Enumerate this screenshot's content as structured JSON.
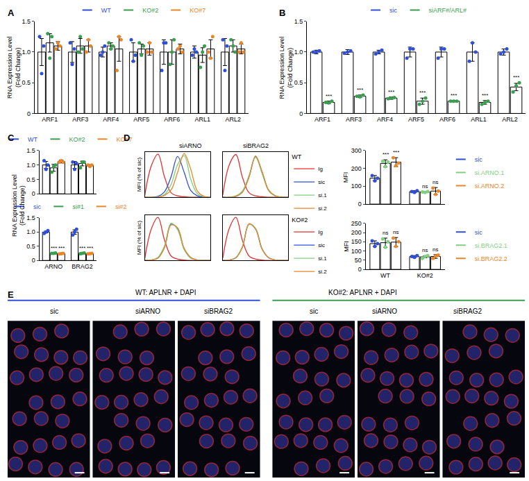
{
  "chart_data": [
    {
      "type": "bar",
      "panel": "A",
      "y_title": "RNA Expression Level\n(Fold Change)",
      "legend": "top",
      "grid": false,
      "categories": [
        "ARF1",
        "ARF3",
        "ARF4",
        "ARF5",
        "ARF6",
        "ARL1",
        "ARL2"
      ],
      "ylim": [
        0,
        1.5
      ],
      "yticks": [
        0,
        0.5,
        {
          "value": 1,
          "label": "1.0"
        },
        1.5
      ],
      "series": [
        {
          "name": "WT",
          "color": "#2f4fd8",
          "values": [
            1.0,
            1.0,
            1.0,
            1.0,
            1.0,
            1.0,
            1.0
          ],
          "errors": [
            0.22,
            0.17,
            0.08,
            0.15,
            0.2,
            0.1,
            0.22
          ],
          "points": [
            [
              1.25,
              0.65,
              1.1
            ],
            [
              1.15,
              0.8,
              1.05
            ],
            [
              0.95,
              1.0,
              1.1
            ],
            [
              1.2,
              0.85,
              0.95
            ],
            [
              0.7,
              1.15,
              1.15
            ],
            [
              0.95,
              1.05,
              1.0
            ],
            [
              1.2,
              0.7,
              1.1
            ]
          ]
        },
        {
          "name": "KO#2",
          "color": "#3a9e4f",
          "values": [
            1.15,
            1.1,
            1.1,
            1.05,
            1.0,
            0.95,
            1.1
          ],
          "errors": [
            0.15,
            0.12,
            0.05,
            0.08,
            0.2,
            0.12,
            0.1
          ],
          "points": [
            [
              1.3,
              0.9,
              1.25
            ],
            [
              1.0,
              1.25,
              1.05
            ],
            [
              1.15,
              1.05,
              1.1
            ],
            [
              1.15,
              0.95,
              1.1
            ],
            [
              0.8,
              1.0,
              1.2
            ],
            [
              0.75,
              1.0,
              1.1
            ],
            [
              1.2,
              1.1,
              1.0
            ]
          ]
        },
        {
          "name": "KO#7",
          "color": "#e8862a",
          "values": [
            1.1,
            1.1,
            1.05,
            1.05,
            1.05,
            1.05,
            1.05
          ],
          "errors": [
            0.07,
            0.1,
            0.2,
            0.1,
            0.08,
            0.15,
            0.08
          ],
          "points": [
            [
              1.05,
              1.15,
              1.1
            ],
            [
              1.0,
              1.2,
              1.1
            ],
            [
              0.7,
              1.25,
              1.2
            ],
            [
              1.0,
              1.15,
              1.0
            ],
            [
              1.05,
              1.1,
              1.0
            ],
            [
              1.0,
              0.9,
              1.25
            ],
            [
              1.0,
              1.15,
              1.0
            ]
          ]
        }
      ]
    },
    {
      "type": "bar",
      "panel": "B",
      "y_title": "RNA Expression Level\n(Fold Change)",
      "legend": "top",
      "grid": false,
      "categories": [
        "ARF1",
        "ARF3",
        "ARF4",
        "ARF5",
        "ARF6",
        "ARL1",
        "ARL2"
      ],
      "ylim": [
        0,
        1.5
      ],
      "yticks": [
        0,
        0.5,
        {
          "value": 1,
          "label": "1.0"
        },
        1.5
      ],
      "series": [
        {
          "name": "sic",
          "color": "#2f4fd8",
          "values": [
            1.0,
            1.0,
            1.0,
            1.0,
            1.0,
            1.0,
            1.0
          ],
          "errors": [
            0.03,
            0.04,
            0.03,
            0.08,
            0.08,
            0.15,
            0.05
          ],
          "points": [
            [
              1.0,
              1.0,
              1.02
            ],
            [
              0.98,
              1.0,
              1.02
            ],
            [
              0.97,
              1.0,
              1.03
            ],
            [
              0.9,
              1.05,
              1.05
            ],
            [
              0.9,
              1.05,
              1.05
            ],
            [
              0.85,
              1.15,
              1.0
            ],
            [
              0.97,
              1.0,
              1.05
            ]
          ]
        },
        {
          "name": "siARF#/ARL#",
          "color": "#3a9e4f",
          "values": [
            0.18,
            0.28,
            0.25,
            0.2,
            0.2,
            0.18,
            0.43
          ],
          "errors": [
            0.02,
            0.02,
            0.02,
            0.05,
            0.01,
            0.03,
            0.06
          ],
          "points": [
            [
              0.18,
              0.17,
              0.2
            ],
            [
              0.28,
              0.27,
              0.3
            ],
            [
              0.24,
              0.25,
              0.26
            ],
            [
              0.15,
              0.2,
              0.25
            ],
            [
              0.2,
              0.2,
              0.2
            ],
            [
              0.15,
              0.18,
              0.2
            ],
            [
              0.35,
              0.45,
              0.5
            ]
          ],
          "annotations": [
            "***",
            "***",
            "***",
            "***",
            "***",
            "***",
            "***"
          ]
        }
      ]
    },
    {
      "type": "bar",
      "panel": "C",
      "y_title": "RNA Expression Level\n(Fold Change)",
      "legend": "top",
      "grid": false,
      "tick_labels": "y",
      "categories": [
        "ARNO",
        "BRAG2"
      ],
      "ylim": [
        0,
        1.5
      ],
      "yticks": [
        0,
        0.5,
        {
          "value": 1,
          "label": "1.0"
        },
        1.5
      ],
      "series": [
        {
          "name": "WT",
          "color": "#2f4fd8",
          "values": [
            1.0,
            1.0
          ],
          "errors": [
            0.12,
            0.12
          ],
          "points": [
            [
              1.15,
              0.85,
              1.0
            ],
            [
              1.1,
              0.85,
              1.05
            ]
          ]
        },
        {
          "name": "KO#2",
          "color": "#3a9e4f",
          "values": [
            0.9,
            1.05
          ],
          "errors": [
            0.12,
            0.08
          ],
          "points": [
            [
              0.75,
              0.95,
              1.0
            ],
            [
              0.9,
              1.1,
              1.1
            ]
          ]
        },
        {
          "name": "KO#7",
          "color": "#e8862a",
          "values": [
            1.12,
            0.98
          ],
          "errors": [
            0.05,
            0.03
          ],
          "points": [
            [
              1.1,
              1.15,
              1.1
            ],
            [
              1.0,
              0.95,
              1.0
            ]
          ]
        }
      ]
    },
    {
      "type": "bar",
      "legend": "top",
      "grid": false,
      "categories": [
        "ARNO",
        "BRAG2"
      ],
      "ylim": [
        0,
        1.5
      ],
      "yticks": [
        0,
        0.5,
        {
          "value": 1,
          "label": "1.0"
        },
        1.5
      ],
      "series": [
        {
          "name": "sic",
          "color": "#2f4fd8",
          "values": [
            1.0,
            1.0
          ],
          "errors": [
            0.03,
            0.08
          ],
          "points": [
            [
              0.95,
              1.0,
              1.05
            ],
            [
              0.9,
              1.0,
              1.1
            ]
          ]
        },
        {
          "name": "si#1",
          "color": "#3a9e4f",
          "values": [
            0.25,
            0.25
          ],
          "errors": [
            0.01,
            0.01
          ],
          "points": [
            [
              0.25,
              0.25,
              0.26
            ],
            [
              0.24,
              0.25,
              0.26
            ]
          ],
          "annotations": [
            "***",
            "***"
          ]
        },
        {
          "name": "si#2",
          "color": "#e8862a",
          "values": [
            0.24,
            0.24
          ],
          "errors": [
            0.01,
            0.01
          ],
          "points": [
            [
              0.23,
              0.24,
              0.25
            ],
            [
              0.23,
              0.24,
              0.25
            ]
          ],
          "annotations": [
            "***",
            "***"
          ]
        }
      ]
    },
    {
      "type": "line",
      "panel": "D",
      "title": "siARNO",
      "y_title": "MFI (% of sic)",
      "tick_labels": false,
      "grid": false,
      "x": [
        0,
        10,
        20,
        30,
        40,
        50,
        60,
        70,
        80,
        90,
        100
      ],
      "xlim": [
        0,
        100
      ],
      "ylim": [
        0,
        100
      ],
      "series": [
        {
          "name": "Ig",
          "color": "#e03030",
          "values": [
            5,
            70,
            95,
            45,
            10,
            3,
            1,
            0,
            0,
            0,
            0
          ]
        },
        {
          "name": "sic",
          "color": "#2f4fd8",
          "values": [
            0,
            0,
            2,
            12,
            45,
            90,
            55,
            15,
            3,
            0,
            0
          ]
        },
        {
          "name": "si.1",
          "color": "#7fd07f",
          "values": [
            0,
            0,
            0,
            6,
            28,
            72,
            92,
            40,
            8,
            1,
            0
          ]
        },
        {
          "name": "si.2",
          "color": "#e8862a",
          "values": [
            0,
            0,
            0,
            4,
            16,
            55,
            96,
            62,
            14,
            2,
            0
          ]
        }
      ]
    },
    {
      "type": "line",
      "title": "siBRAG2",
      "legend_title": "WT",
      "legend": "right",
      "tick_labels": false,
      "grid": false,
      "x": [
        0,
        10,
        20,
        30,
        40,
        50,
        60,
        70,
        80,
        90,
        100
      ],
      "xlim": [
        0,
        100
      ],
      "ylim": [
        0,
        100
      ],
      "series": [
        {
          "name": "Ig",
          "color": "#e03030",
          "values": [
            5,
            72,
            94,
            44,
            10,
            3,
            1,
            0,
            0,
            0,
            0
          ]
        },
        {
          "name": "sic",
          "color": "#2f4fd8",
          "values": [
            0,
            0,
            2,
            12,
            45,
            90,
            55,
            15,
            3,
            0,
            0
          ]
        },
        {
          "name": "si.1",
          "color": "#7fd07f",
          "values": [
            0,
            0,
            3,
            14,
            48,
            88,
            52,
            14,
            3,
            0,
            0
          ]
        },
        {
          "name": "si.2",
          "color": "#e8862a",
          "values": [
            0,
            0,
            2,
            11,
            44,
            91,
            57,
            16,
            3,
            0,
            0
          ]
        }
      ]
    },
    {
      "type": "line",
      "y_title": "MFI (% of sic)",
      "tick_labels": false,
      "grid": false,
      "x": [
        0,
        10,
        20,
        30,
        40,
        50,
        60,
        70,
        80,
        90,
        100
      ],
      "xlim": [
        0,
        100
      ],
      "ylim": [
        0,
        100
      ],
      "series": [
        {
          "name": "Ig",
          "color": "#e03030",
          "values": [
            5,
            70,
            95,
            45,
            10,
            3,
            1,
            0,
            0,
            0,
            0
          ]
        },
        {
          "name": "sic",
          "color": "#2f4fd8",
          "values": [
            0,
            1,
            6,
            30,
            80,
            70,
            25,
            6,
            1,
            0,
            0
          ]
        },
        {
          "name": "si.1",
          "color": "#7fd07f",
          "values": [
            0,
            1,
            7,
            32,
            82,
            68,
            24,
            5,
            1,
            0,
            0
          ]
        },
        {
          "name": "si.2",
          "color": "#e8862a",
          "values": [
            0,
            1,
            5,
            28,
            78,
            72,
            27,
            7,
            1,
            0,
            0
          ]
        }
      ]
    },
    {
      "type": "line",
      "legend_title": "KO#2",
      "legend": "right",
      "tick_labels": false,
      "grid": false,
      "x": [
        0,
        10,
        20,
        30,
        40,
        50,
        60,
        70,
        80,
        90,
        100
      ],
      "xlim": [
        0,
        100
      ],
      "ylim": [
        0,
        100
      ],
      "series": [
        {
          "name": "Ig",
          "color": "#e03030",
          "values": [
            5,
            71,
            95,
            44,
            10,
            3,
            1,
            0,
            0,
            0,
            0
          ]
        },
        {
          "name": "sic",
          "color": "#2f4fd8",
          "values": [
            0,
            1,
            6,
            30,
            80,
            70,
            25,
            6,
            1,
            0,
            0
          ]
        },
        {
          "name": "si.1",
          "color": "#7fd07f",
          "values": [
            0,
            1,
            6,
            31,
            79,
            71,
            26,
            6,
            1,
            0,
            0
          ]
        },
        {
          "name": "si.2",
          "color": "#e8862a",
          "values": [
            0,
            1,
            6,
            29,
            81,
            69,
            25,
            6,
            1,
            0,
            0
          ]
        }
      ]
    },
    {
      "type": "bar",
      "y_title": "MFI",
      "legend": "right",
      "grid": false,
      "tick_labels": "y",
      "categories": [
        "WT",
        "KO#2"
      ],
      "ylim": [
        0,
        300
      ],
      "yticks": [
        0,
        100,
        200,
        300
      ],
      "series": [
        {
          "name": "sic",
          "color": "#2f4fd8",
          "values": [
            145,
            70
          ],
          "errors": [
            15,
            5
          ],
          "points": [
            [
              160,
              130,
              145
            ],
            [
              70,
              65,
              75
            ]
          ]
        },
        {
          "name": "si.ARNO.1",
          "color": "#7fd07f",
          "values": [
            228,
            68
          ],
          "errors": [
            20,
            3
          ],
          "points": [
            [
              240,
              210,
              235
            ],
            [
              68,
              65,
              70
            ]
          ],
          "annotations": [
            "***",
            "ns"
          ]
        },
        {
          "name": "si.ARNO.2",
          "color": "#e8862a",
          "values": [
            235,
            73
          ],
          "errors": [
            25,
            20
          ],
          "points": [
            [
              260,
              215,
              230
            ],
            [
              90,
              55,
              73
            ]
          ],
          "annotations": [
            "***",
            "ns"
          ]
        }
      ]
    },
    {
      "type": "bar",
      "y_title": "MFI",
      "legend": "right",
      "grid": false,
      "categories": [
        "WT",
        "KO#2"
      ],
      "ylim": [
        0,
        250
      ],
      "yticks": [
        0,
        50,
        100,
        150,
        200,
        250
      ],
      "series": [
        {
          "name": "sic",
          "color": "#2f4fd8",
          "values": [
            140,
            70
          ],
          "errors": [
            15,
            5
          ],
          "points": [
            [
              155,
              125,
              140
            ],
            [
              70,
              65,
              75
            ]
          ]
        },
        {
          "name": "si.BRAG2.1",
          "color": "#7fd07f",
          "values": [
            145,
            68
          ],
          "errors": [
            25,
            5
          ],
          "points": [
            [
              165,
              120,
              150
            ],
            [
              60,
              70,
              75
            ]
          ],
          "annotations": [
            "ns",
            "ns"
          ]
        },
        {
          "name": "si.BRAG2.2",
          "color": "#e8862a",
          "values": [
            148,
            70
          ],
          "errors": [
            25,
            10
          ],
          "points": [
            [
              170,
              125,
              150
            ],
            [
              60,
              72,
              78
            ]
          ],
          "annotations": [
            "ns",
            "ns"
          ]
        }
      ]
    }
  ],
  "panel_E": {
    "panel": "E",
    "groups": [
      {
        "title": "WT: APLNR + DAPI",
        "color": "#2f4fd8",
        "images": [
          "sic",
          "siARNO",
          "siBRAG2"
        ]
      },
      {
        "title": "KO#2: APLNR + DAPI",
        "color": "#3a9e4f",
        "images": [
          "sic",
          "siARNO",
          "siBRAG2"
        ]
      }
    ]
  }
}
